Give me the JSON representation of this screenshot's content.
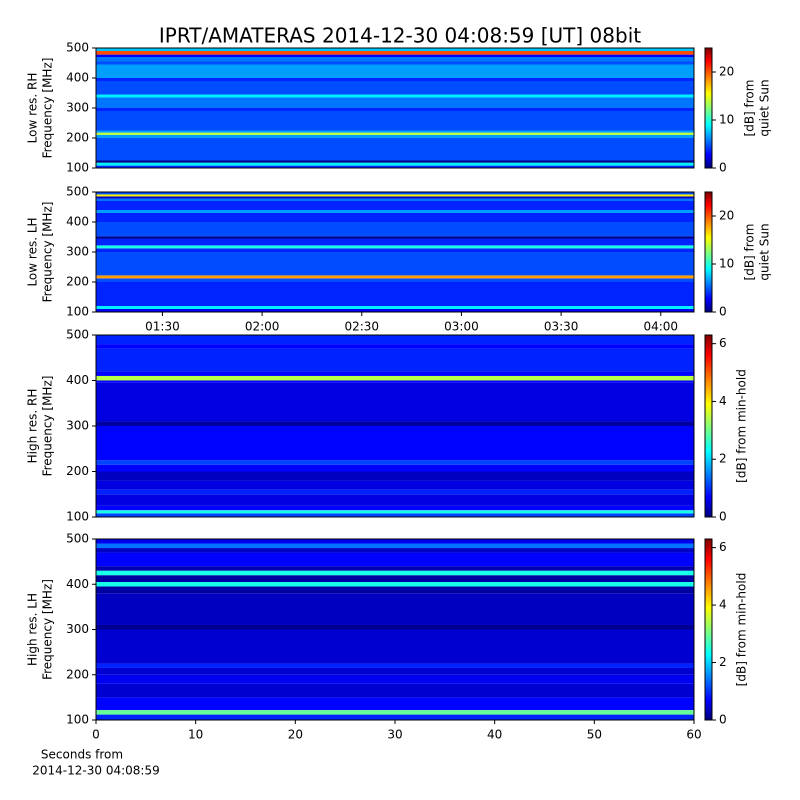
{
  "chart_data": [
    {
      "type": "heatmap",
      "title": "IPRT/AMATERAS 2014-12-30 04:08:59 [UT]   08bit",
      "ylabel": [
        "Low res. RH",
        "Frequency [MHz]"
      ],
      "colorbar_label": [
        "[dB] from",
        "quiet Sun"
      ],
      "xlim": [
        70,
        250
      ],
      "ylim": [
        100,
        500
      ],
      "yticks": [
        100,
        200,
        300,
        400,
        500
      ],
      "clim": [
        0,
        25
      ],
      "cticks": [
        0,
        10,
        20
      ],
      "y_bins": [
        100,
        108,
        118,
        125,
        200,
        210,
        218,
        225,
        290,
        300,
        335,
        345,
        390,
        400,
        445,
        455,
        470,
        478,
        490,
        500
      ],
      "values": [
        4,
        9,
        0,
        5,
        7,
        14,
        7,
        5,
        4,
        6,
        9,
        5,
        4,
        7,
        5,
        6,
        3,
        20,
        8
      ]
    },
    {
      "type": "heatmap",
      "ylabel": [
        "Low res. LH",
        "Frequency [MHz]"
      ],
      "colorbar_label": [
        "[dB] from",
        "quiet Sun"
      ],
      "xlim": [
        70,
        250
      ],
      "xticks": [
        {
          "value": 90,
          "label": "01:30"
        },
        {
          "value": 120,
          "label": "02:00"
        },
        {
          "value": 150,
          "label": "02:30"
        },
        {
          "value": 180,
          "label": "03:00"
        },
        {
          "value": 210,
          "label": "03:30"
        },
        {
          "value": 240,
          "label": "04:00"
        }
      ],
      "ylim": [
        100,
        500
      ],
      "yticks": [
        100,
        200,
        300,
        400,
        500
      ],
      "clim": [
        0,
        25
      ],
      "cticks": [
        0,
        10,
        20
      ],
      "y_bins": [
        100,
        110,
        120,
        200,
        212,
        222,
        300,
        312,
        322,
        345,
        352,
        400,
        430,
        440,
        470,
        478,
        485,
        492,
        500
      ],
      "values": [
        3,
        9,
        4,
        5,
        18,
        5,
        4,
        10,
        4,
        0,
        5,
        4,
        7,
        4,
        6,
        2,
        16,
        5
      ]
    },
    {
      "type": "heatmap",
      "ylabel": [
        "High res. RH",
        "Frequency [MHz]"
      ],
      "colorbar_label": [
        "[dB] from min-hold"
      ],
      "xlim": [
        0,
        60
      ],
      "ylim": [
        100,
        500
      ],
      "yticks": [
        100,
        200,
        300,
        400,
        500
      ],
      "clim": [
        0,
        6.3
      ],
      "cticks": [
        0,
        2,
        4,
        6
      ],
      "y_bins": [
        100,
        108,
        115,
        125,
        150,
        160,
        180,
        200,
        215,
        225,
        300,
        310,
        395,
        400,
        410,
        420,
        470,
        480,
        500
      ],
      "values": [
        1.2,
        2.5,
        0.8,
        0.6,
        1.0,
        0.6,
        0.4,
        0.8,
        1.2,
        0.8,
        0.2,
        0.6,
        0.8,
        3.5,
        0.8,
        1.0,
        0.8,
        1.0
      ]
    },
    {
      "type": "heatmap",
      "ylabel": [
        "High res. LH",
        "Frequency [MHz]"
      ],
      "colorbar_label": [
        "[dB] from min-hold"
      ],
      "xlabel": [
        "Seconds from",
        "2014-12-30 04:08:59"
      ],
      "xlim": [
        0,
        60
      ],
      "xticks": [
        0,
        10,
        20,
        30,
        40,
        50,
        60
      ],
      "ylim": [
        100,
        500
      ],
      "yticks": [
        100,
        200,
        300,
        400,
        500
      ],
      "clim": [
        0,
        6.3
      ],
      "cticks": [
        0,
        2,
        4,
        6
      ],
      "y_bins": [
        100,
        112,
        122,
        150,
        180,
        200,
        215,
        225,
        300,
        310,
        380,
        395,
        405,
        420,
        430,
        440,
        470,
        480,
        490,
        500
      ],
      "values": [
        1.0,
        3.0,
        0.8,
        0.5,
        0.7,
        0.5,
        1.0,
        0.5,
        0.1,
        0.4,
        0.2,
        2.5,
        0.2,
        2.5,
        0.3,
        0.8,
        0.4,
        1.5,
        0.7
      ]
    }
  ]
}
